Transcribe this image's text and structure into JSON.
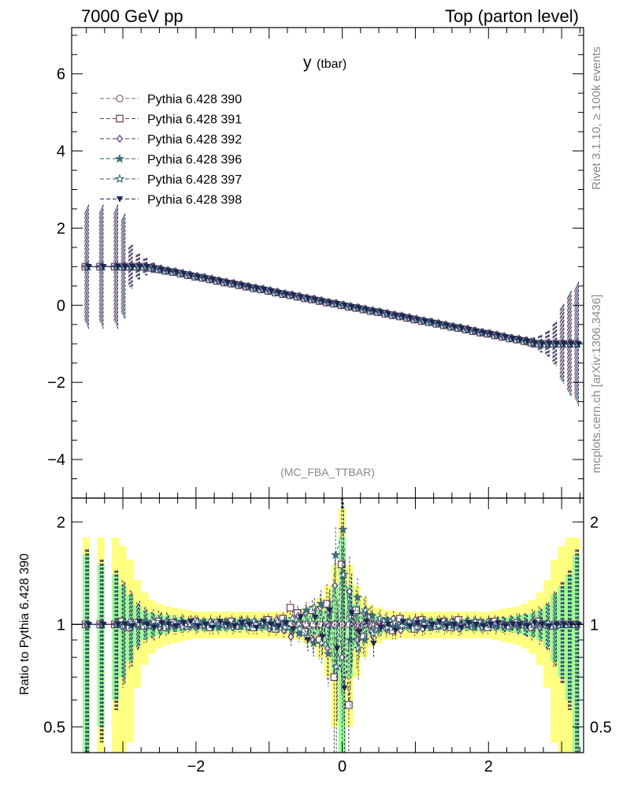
{
  "header": {
    "left": "7000 GeV pp",
    "right": "Top (parton level)"
  },
  "plot_title": "y",
  "plot_title_sub": "(tbar)",
  "watermark": "(MC_FBA_TTBAR)",
  "side_text_top": "Rivet 3.1.10, ≥ 100k events",
  "side_text_bottom": "mcplots.cern.ch [arXiv:1306.3436]",
  "ratio_ylabel": "Ratio to Pythia 6.428 390",
  "colors": {
    "s390": "#8a5a74",
    "s391": "#6e3a58",
    "s392": "#5a2e7a",
    "s396": "#3f6e7a",
    "s397": "#2e5a6e",
    "s398": "#1e2650",
    "band_inner": "#99ff99",
    "band_outer": "#ffff80"
  },
  "chart_data": [
    {
      "type": "line",
      "title": "",
      "xlim": [
        -3.7,
        3.3
      ],
      "ylim": [
        -5,
        7.2
      ],
      "yticks": [
        -4,
        -2,
        0,
        2,
        4,
        6
      ],
      "ytick_labels": [
        "−4",
        "−2",
        "0",
        "2",
        "4",
        "6"
      ],
      "legend_position": "top-left",
      "series": [
        {
          "name": "Pythia 6.428 390",
          "marker": "circle-open",
          "key": "s390"
        },
        {
          "name": "Pythia 6.428 391",
          "marker": "square-open",
          "key": "s391"
        },
        {
          "name": "Pythia 6.428 392",
          "marker": "diamond-open",
          "key": "s392"
        },
        {
          "name": "Pythia 6.428 396",
          "marker": "star-filled",
          "key": "s396"
        },
        {
          "name": "Pythia 6.428 397",
          "marker": "star-open",
          "key": "s397"
        },
        {
          "name": "Pythia 6.428 398",
          "marker": "triangle-down-filled",
          "key": "s398"
        }
      ],
      "x": [
        -3.5,
        -3.3,
        -3.1,
        -3.0,
        -2.9,
        -2.8,
        -2.7,
        -2.6,
        -2.5,
        -2.4,
        -2.3,
        -2.2,
        -2.1,
        -2.0,
        -1.9,
        -1.8,
        -1.7,
        -1.6,
        -1.5,
        -1.4,
        -1.3,
        -1.2,
        -1.1,
        -1.0,
        -0.9,
        -0.8,
        -0.7,
        -0.6,
        -0.5,
        -0.4,
        -0.3,
        -0.2,
        -0.1,
        0.0,
        0.1,
        0.2,
        0.3,
        0.4,
        0.5,
        0.6,
        0.7,
        0.8,
        0.9,
        1.0,
        1.1,
        1.2,
        1.3,
        1.4,
        1.5,
        1.6,
        1.7,
        1.8,
        1.9,
        2.0,
        2.1,
        2.2,
        2.3,
        2.4,
        2.5,
        2.6,
        2.7,
        2.8,
        2.9,
        3.0,
        3.1,
        3.2
      ],
      "y": [
        1.0,
        1.0,
        1.0,
        1.0,
        1.0,
        1.0,
        1.0,
        0.97,
        0.93,
        0.89,
        0.86,
        0.82,
        0.78,
        0.74,
        0.71,
        0.67,
        0.63,
        0.59,
        0.56,
        0.52,
        0.48,
        0.44,
        0.41,
        0.37,
        0.33,
        0.29,
        0.26,
        0.22,
        0.18,
        0.15,
        0.11,
        0.07,
        0.04,
        0.0,
        -0.04,
        -0.07,
        -0.11,
        -0.15,
        -0.18,
        -0.22,
        -0.26,
        -0.29,
        -0.33,
        -0.37,
        -0.41,
        -0.44,
        -0.48,
        -0.52,
        -0.56,
        -0.59,
        -0.63,
        -0.67,
        -0.71,
        -0.74,
        -0.78,
        -0.82,
        -0.86,
        -0.89,
        -0.93,
        -0.97,
        -1.0,
        -1.0,
        -1.0,
        -1.0,
        -1.0,
        -1.0
      ],
      "yerr": [
        1.4,
        1.4,
        1.4,
        1.2,
        0.5,
        0.3,
        0.2,
        0.12,
        0.1,
        0.08,
        0.07,
        0.06,
        0.06,
        0.06,
        0.05,
        0.05,
        0.05,
        0.05,
        0.05,
        0.05,
        0.05,
        0.05,
        0.05,
        0.05,
        0.05,
        0.05,
        0.05,
        0.05,
        0.05,
        0.05,
        0.05,
        0.05,
        0.05,
        0.05,
        0.05,
        0.05,
        0.05,
        0.05,
        0.05,
        0.05,
        0.05,
        0.05,
        0.05,
        0.05,
        0.05,
        0.05,
        0.05,
        0.05,
        0.05,
        0.05,
        0.05,
        0.05,
        0.05,
        0.06,
        0.06,
        0.06,
        0.07,
        0.08,
        0.1,
        0.12,
        0.2,
        0.3,
        0.5,
        0.9,
        1.2,
        1.4
      ]
    },
    {
      "type": "line",
      "title": "",
      "xlabel": "",
      "ylabel": "Ratio to Pythia 6.428 390",
      "xlim": [
        -3.7,
        3.3
      ],
      "ylim": [
        0.42,
        2.35
      ],
      "log_y": true,
      "xticks": [
        -2,
        0,
        2
      ],
      "xtick_labels": [
        "−2",
        "0",
        "2"
      ],
      "yticks": [
        0.5,
        1,
        2
      ],
      "ytick_labels": [
        "0.5",
        "1",
        "2"
      ],
      "reference_line": 1,
      "band_inner_halfwidth": [
        0.6,
        0.5,
        0.4,
        0.3,
        0.22,
        0.14,
        0.1,
        0.08,
        0.07,
        0.06,
        0.05,
        0.05,
        0.04,
        0.04,
        0.04,
        0.04,
        0.04,
        0.04,
        0.04,
        0.04,
        0.04,
        0.04,
        0.04,
        0.04,
        0.04,
        0.04,
        0.05,
        0.05,
        0.06,
        0.07,
        0.1,
        0.15,
        0.3,
        0.8,
        0.3,
        0.15,
        0.1,
        0.07,
        0.06,
        0.05,
        0.05,
        0.04,
        0.04,
        0.04,
        0.04,
        0.04,
        0.04,
        0.04,
        0.04,
        0.04,
        0.04,
        0.04,
        0.04,
        0.04,
        0.04,
        0.05,
        0.05,
        0.06,
        0.07,
        0.08,
        0.1,
        0.14,
        0.22,
        0.3,
        0.4,
        0.6
      ],
      "band_outer_halfwidth": [
        0.8,
        0.8,
        0.8,
        0.7,
        0.55,
        0.35,
        0.24,
        0.18,
        0.15,
        0.13,
        0.12,
        0.11,
        0.1,
        0.09,
        0.09,
        0.09,
        0.09,
        0.09,
        0.09,
        0.09,
        0.09,
        0.09,
        0.09,
        0.09,
        0.09,
        0.09,
        0.1,
        0.1,
        0.12,
        0.14,
        0.2,
        0.3,
        0.5,
        1.2,
        0.5,
        0.3,
        0.2,
        0.14,
        0.12,
        0.1,
        0.1,
        0.09,
        0.09,
        0.09,
        0.09,
        0.09,
        0.09,
        0.09,
        0.09,
        0.09,
        0.09,
        0.09,
        0.09,
        0.09,
        0.1,
        0.11,
        0.12,
        0.13,
        0.15,
        0.18,
        0.24,
        0.35,
        0.55,
        0.7,
        0.8,
        0.8
      ],
      "ratio_series": [
        {
          "key": "s391",
          "values": [
            1.0,
            1.0,
            1.0,
            1.02,
            0.98,
            1.01,
            0.99,
            1.0,
            1.02,
            0.98,
            1.01,
            1.0,
            0.99,
            1.02,
            1.0,
            0.98,
            1.01,
            1.0,
            1.02,
            0.99,
            1.01,
            0.98,
            1.0,
            1.03,
            0.97,
            1.04,
            1.12,
            1.08,
            0.95,
            1.1,
            0.9,
            1.15,
            0.7,
            1.5,
            0.58,
            1.1,
            0.92,
            1.05,
            0.98,
            1.02,
            0.96,
            1.04,
            1.0,
            0.97,
            1.03,
            1.0,
            0.99,
            1.02,
            0.98,
            1.03,
            1.0,
            0.99,
            1.01,
            0.98,
            1.02,
            1.0,
            0.99,
            1.01,
            1.0,
            0.98,
            1.02,
            1.0,
            0.99,
            1.0,
            1.0,
            1.0
          ]
        },
        {
          "key": "s392",
          "values": [
            1.0,
            1.0,
            1.0,
            0.98,
            1.02,
            0.99,
            1.01,
            1.0,
            0.98,
            1.02,
            0.99,
            1.0,
            1.01,
            0.98,
            1.0,
            1.02,
            0.99,
            1.0,
            0.98,
            1.01,
            0.99,
            1.02,
            1.0,
            0.97,
            1.03,
            0.96,
            0.92,
            1.06,
            1.08,
            0.9,
            1.12,
            0.85,
            1.3,
            0.8,
            1.25,
            0.9,
            1.08,
            0.95,
            1.02,
            0.97,
            1.04,
            0.96,
            1.0,
            1.03,
            0.97,
            1.0,
            1.01,
            0.98,
            1.02,
            0.97,
            1.0,
            1.01,
            0.99,
            1.02,
            0.98,
            1.0,
            1.01,
            0.99,
            1.0,
            1.02,
            0.98,
            1.0,
            1.01,
            1.0,
            1.0,
            1.0
          ]
        },
        {
          "key": "s396",
          "values": [
            1.0,
            1.0,
            1.0,
            1.01,
            0.99,
            1.0,
            1.02,
            0.99,
            1.0,
            1.01,
            0.99,
            1.02,
            1.0,
            0.99,
            1.01,
            1.0,
            0.98,
            1.01,
            1.0,
            0.99,
            1.02,
            1.0,
            0.99,
            1.01,
            0.98,
            1.02,
            0.96,
            0.94,
            1.1,
            0.88,
            1.15,
            0.82,
            1.6,
            1.9,
            0.9,
            1.2,
            0.9,
            1.06,
            0.97,
            1.03,
            0.98,
            1.01,
            0.99,
            1.0,
            1.02,
            0.98,
            1.0,
            1.01,
            0.99,
            1.0,
            1.02,
            0.98,
            1.0,
            1.01,
            0.99,
            1.0,
            1.01,
            0.99,
            1.0,
            1.0,
            1.01,
            0.99,
            1.0,
            1.0,
            1.0,
            1.0
          ]
        },
        {
          "key": "s397",
          "values": [
            1.0,
            1.0,
            1.0,
            0.99,
            1.01,
            1.0,
            0.99,
            1.02,
            1.0,
            0.99,
            1.01,
            0.98,
            1.0,
            1.02,
            0.99,
            1.0,
            1.01,
            0.99,
            1.0,
            1.02,
            0.98,
            1.0,
            1.01,
            0.99,
            1.02,
            0.98,
            1.04,
            0.97,
            0.92,
            1.12,
            0.88,
            1.08,
            0.75,
            1.4,
            1.05,
            0.85,
            1.1,
            0.94,
            1.04,
            0.98,
            1.01,
            0.99,
            1.02,
            0.98,
            1.0,
            1.01,
            0.99,
            1.0,
            1.01,
            0.99,
            1.0,
            1.02,
            0.98,
            1.0,
            1.01,
            0.99,
            1.0,
            1.01,
            0.99,
            1.0,
            1.0,
            1.01,
            0.99,
            1.0,
            1.0,
            1.0
          ]
        },
        {
          "key": "s398",
          "values": [
            1.0,
            1.0,
            1.0,
            1.0,
            0.99,
            1.02,
            1.0,
            0.98,
            1.01,
            1.0,
            0.99,
            1.01,
            1.02,
            0.99,
            1.0,
            0.98,
            1.02,
            1.0,
            0.99,
            1.01,
            1.0,
            0.98,
            1.02,
            1.0,
            0.99,
            1.01,
            0.97,
            1.05,
            0.9,
            1.05,
            0.92,
            1.1,
            0.85,
            0.65,
            1.08,
            0.95,
            1.02,
            0.88,
            0.98,
            1.0,
            0.96,
            1.02,
            0.99,
            1.01,
            0.98,
            1.0,
            1.02,
            0.99,
            1.0,
            0.98,
            1.01,
            1.0,
            0.99,
            1.0,
            1.01,
            0.99,
            1.0,
            1.0,
            0.99,
            1.01,
            1.0,
            0.99,
            1.0,
            1.0,
            1.0,
            1.0
          ]
        }
      ]
    }
  ]
}
